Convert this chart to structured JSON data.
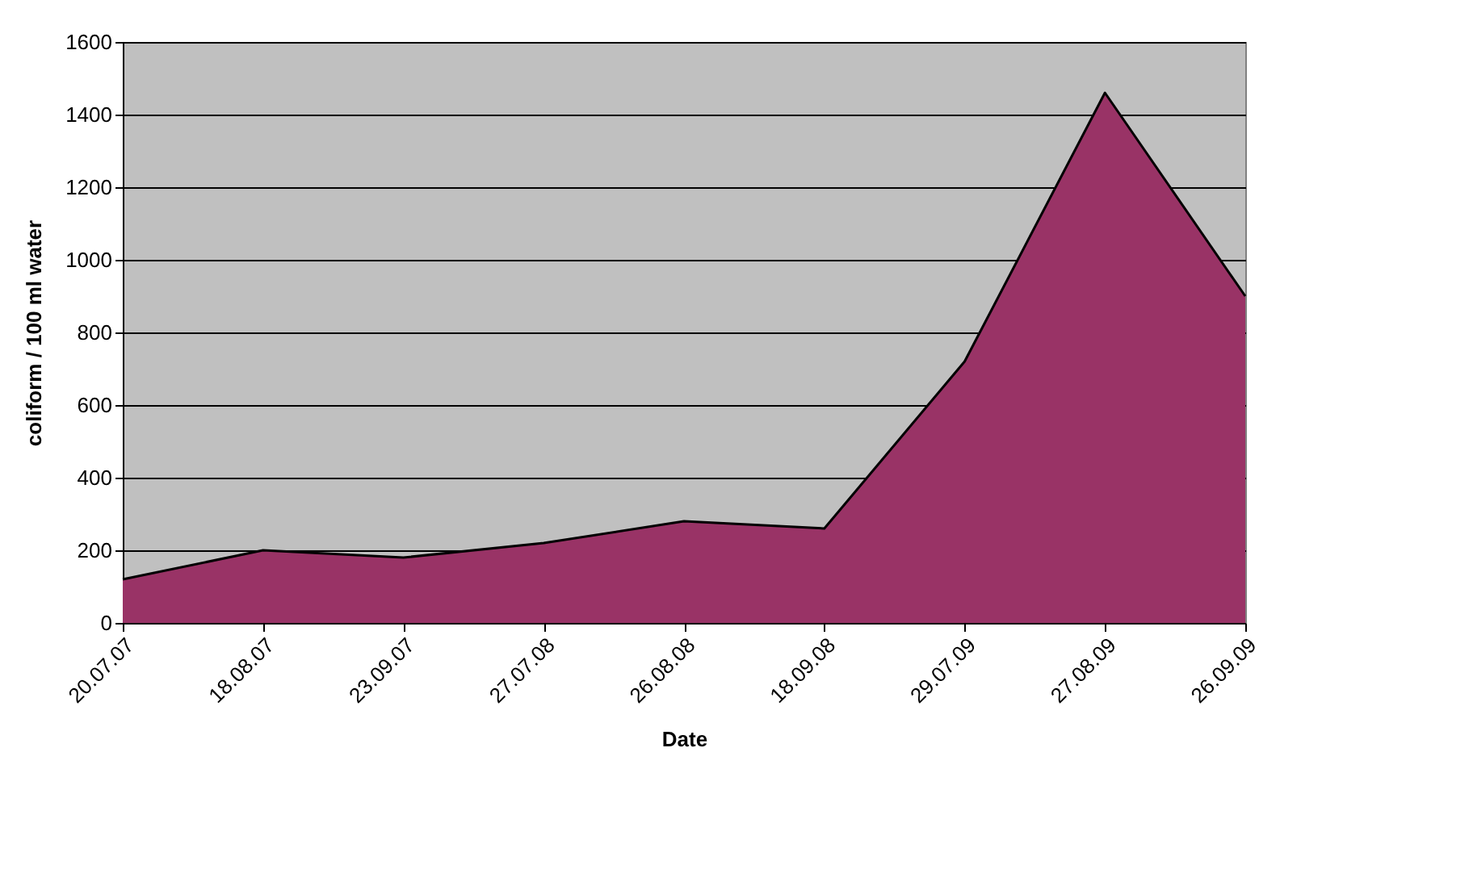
{
  "chart_data": {
    "type": "area",
    "xlabel": "Date",
    "ylabel": "coliform / 100 ml water",
    "categories": [
      "20.07.07",
      "18.08.07",
      "23.09.07",
      "27.07.08",
      "26.08.08",
      "18.09.08",
      "29.07.09",
      "27.08.09",
      "26.09.09"
    ],
    "series": [
      {
        "color": "#993366",
        "values": [
          120,
          200,
          180,
          220,
          280,
          260,
          720,
          1460,
          900
        ]
      }
    ],
    "ylim": [
      0,
      1600
    ],
    "yticks": [
      0,
      200,
      400,
      600,
      800,
      1000,
      1200,
      1400,
      1600
    ],
    "grid": "y"
  }
}
